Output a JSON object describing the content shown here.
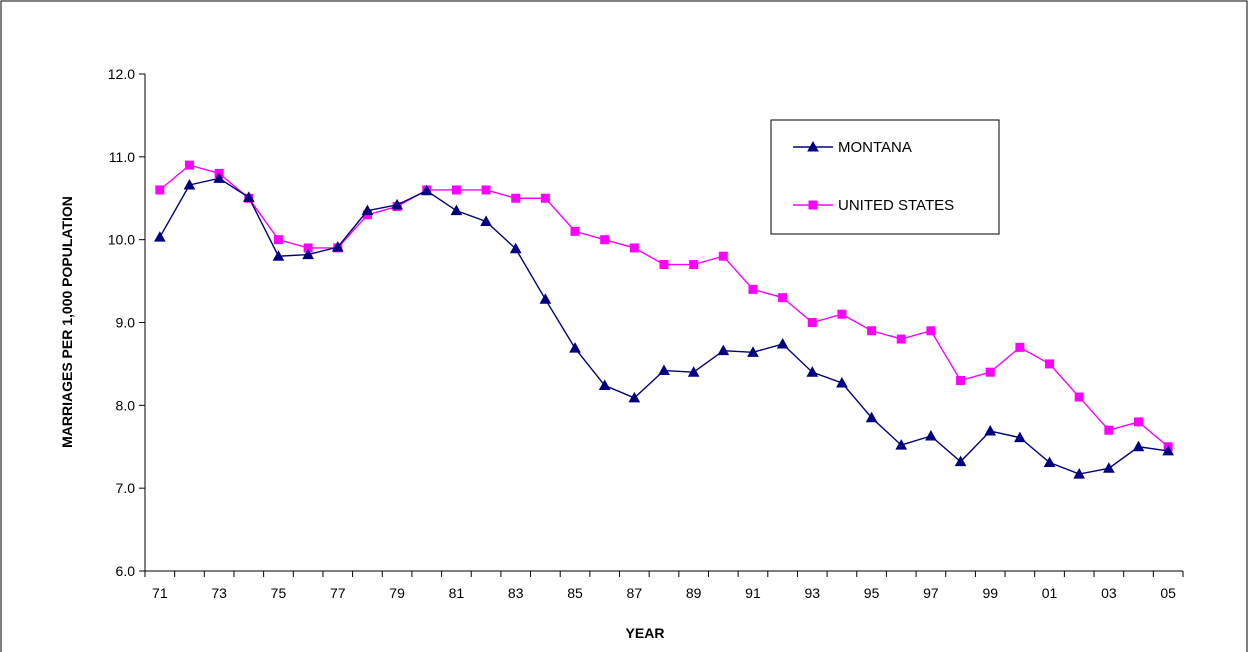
{
  "chart_data": {
    "type": "line",
    "title": "",
    "xlabel": "YEAR",
    "ylabel": "MARRIAGES PER 1,000 POPULATION",
    "ylim": [
      6.0,
      12.0
    ],
    "ytick_step": 1.0,
    "grid": false,
    "legend_position": "top-right",
    "x": [
      "71",
      "72",
      "73",
      "74",
      "75",
      "76",
      "77",
      "78",
      "79",
      "80",
      "81",
      "82",
      "83",
      "84",
      "85",
      "86",
      "87",
      "88",
      "89",
      "90",
      "91",
      "92",
      "93",
      "94",
      "95",
      "96",
      "97",
      "98",
      "99",
      "00",
      "01",
      "02",
      "03",
      "04",
      "05"
    ],
    "x_tick_labels": [
      "71",
      "73",
      "75",
      "77",
      "79",
      "81",
      "83",
      "85",
      "87",
      "89",
      "91",
      "93",
      "95",
      "97",
      "99",
      "01",
      "03",
      "05"
    ],
    "y_tick_labels": [
      "6.0",
      "7.0",
      "8.0",
      "9.0",
      "10.0",
      "11.0",
      "12.0"
    ],
    "series": [
      {
        "name": "MONTANA",
        "color": "#000080",
        "marker": "triangle",
        "values": [
          10.03,
          10.66,
          10.74,
          10.51,
          9.8,
          9.82,
          9.91,
          10.35,
          10.42,
          10.59,
          10.35,
          10.22,
          9.89,
          9.28,
          8.69,
          8.24,
          8.09,
          8.42,
          8.4,
          8.66,
          8.64,
          8.74,
          8.4,
          8.27,
          7.85,
          7.52,
          7.63,
          7.32,
          7.69,
          7.61,
          7.31,
          7.17,
          7.24,
          7.5,
          7.45
        ]
      },
      {
        "name": "UNITED STATES",
        "color": "#FF00FF",
        "marker": "square",
        "values": [
          10.6,
          10.9,
          10.8,
          10.5,
          10.0,
          9.9,
          9.9,
          10.3,
          10.4,
          10.6,
          10.6,
          10.6,
          10.5,
          10.5,
          10.1,
          10.0,
          9.9,
          9.7,
          9.7,
          9.8,
          9.4,
          9.3,
          9.0,
          9.1,
          8.9,
          8.8,
          8.9,
          8.3,
          8.4,
          8.7,
          8.5,
          8.1,
          7.7,
          7.8,
          7.5
        ]
      }
    ]
  }
}
